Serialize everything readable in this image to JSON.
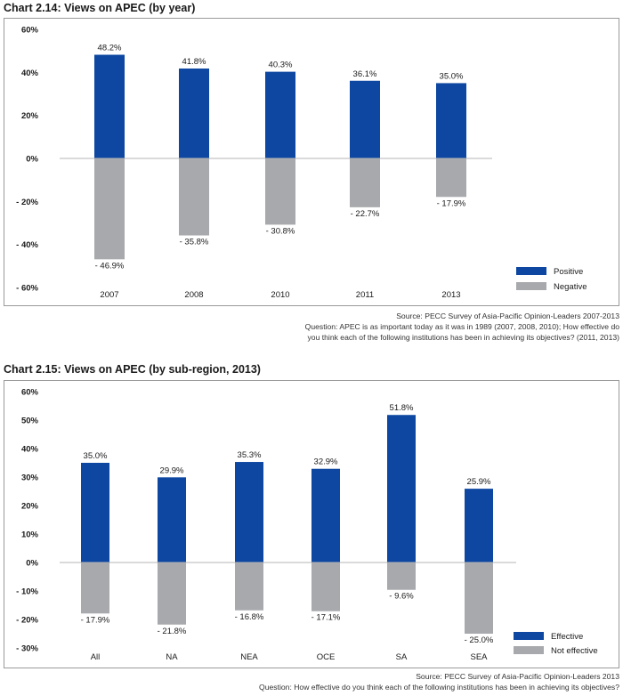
{
  "chart_data": [
    {
      "type": "bar",
      "title": "Chart 2.14: Views on APEC (by year)",
      "categories": [
        "2007",
        "2008",
        "2010",
        "2011",
        "2013"
      ],
      "series": [
        {
          "name": "Positive",
          "values": [
            48.2,
            41.8,
            40.3,
            36.1,
            35.0
          ],
          "labels": [
            "48.2%",
            "41.8%",
            "40.3%",
            "36.1%",
            "35.0%"
          ],
          "color": "#0d47a1"
        },
        {
          "name": "Negative",
          "values": [
            -46.9,
            -35.8,
            -30.8,
            -22.7,
            -17.9
          ],
          "labels": [
            "- 46.9%",
            "- 35.8%",
            "- 30.8%",
            "- 22.7%",
            "- 17.9%"
          ],
          "color": "#a8a9ad"
        }
      ],
      "yticks": [
        60,
        40,
        20,
        0,
        -20,
        -40,
        -60
      ],
      "ytick_labels": [
        "60%",
        "40%",
        "20%",
        "0%",
        "- 20%",
        "- 40%",
        "- 60%"
      ],
      "ylim": [
        -60,
        60
      ],
      "legend": "bottom-right",
      "source_lines": [
        "Source: PECC Survey of Asia-Pacific Opinion-Leaders 2007-2013",
        "Question: APEC is as important today as it was in 1989 (2007, 2008, 2010); How effective do",
        "you think each of the following institutions has been in achieving its objectives? (2011, 2013)"
      ]
    },
    {
      "type": "bar",
      "title": "Chart 2.15: Views on APEC (by sub-region, 2013)",
      "categories": [
        "All",
        "NA",
        "NEA",
        "OCE",
        "SA",
        "SEA"
      ],
      "series": [
        {
          "name": "Effective",
          "values": [
            35.0,
            29.9,
            35.3,
            32.9,
            51.8,
            25.9
          ],
          "labels": [
            "35.0%",
            "29.9%",
            "35.3%",
            "32.9%",
            "51.8%",
            "25.9%"
          ],
          "color": "#0d47a1"
        },
        {
          "name": "Not effective",
          "values": [
            -17.9,
            -21.8,
            -16.8,
            -17.1,
            -9.6,
            -25.0
          ],
          "labels": [
            "- 17.9%",
            "- 21.8%",
            "- 16.8%",
            "- 17.1%",
            "- 9.6%",
            "- 25.0%"
          ],
          "color": "#a8a9ad"
        }
      ],
      "yticks": [
        60,
        50,
        40,
        30,
        20,
        10,
        0,
        -10,
        -20,
        -30
      ],
      "ytick_labels": [
        "60%",
        "50%",
        "40%",
        "30%",
        "20%",
        "10%",
        "0%",
        "- 10%",
        "- 20%",
        "- 30%"
      ],
      "ylim": [
        -30,
        60
      ],
      "legend": "bottom-right",
      "source_lines": [
        "Source: PECC Survey of Asia-Pacific Opinion-Leaders 2013",
        "Question: How effective do you think each of the following institutions has been in achieving its objectives?"
      ]
    }
  ]
}
